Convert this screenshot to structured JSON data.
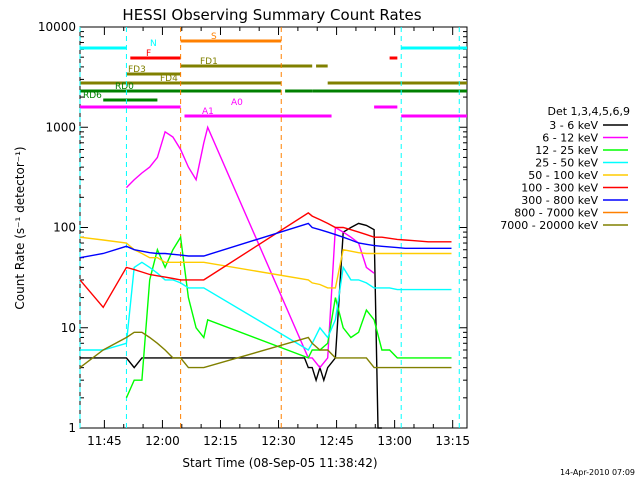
{
  "chart_data": {
    "type": "line",
    "title": "HESSI Observing Summary Count Rates",
    "xlabel": "Start Time (08-Sep-05 11:38:42)",
    "ylabel": "Count Rate (s⁻¹ detector⁻¹)",
    "y_scale": "log",
    "ylim": [
      1,
      10000
    ],
    "xlim_minutes": [
      0,
      100
    ],
    "x_ticks": [
      "11:45",
      "12:00",
      "12:15",
      "12:30",
      "12:45",
      "13:00",
      "13:15"
    ],
    "y_ticks": [
      "1",
      "10",
      "100",
      "1000",
      "10000"
    ],
    "footer_date": "14-Apr-2010 07:09",
    "legend_title": "Det 1,3,4,5,6,9",
    "series": [
      {
        "name": "3 - 6 keV",
        "color": "#000000",
        "x": [
          0,
          6,
          12,
          14,
          16,
          18,
          20,
          22,
          24,
          26,
          28,
          30,
          32,
          34,
          36,
          38,
          40,
          42,
          58,
          59,
          60,
          61,
          62,
          63,
          64,
          66,
          68,
          70,
          72,
          74,
          76,
          77,
          78
        ],
        "y": [
          5,
          5,
          5,
          4,
          5,
          5,
          5,
          5,
          5,
          5,
          5,
          5,
          5,
          5,
          5,
          5,
          5,
          5,
          5,
          4,
          4,
          3,
          4,
          3,
          4,
          5,
          90,
          100,
          110,
          105,
          95,
          1,
          1
        ],
        "segments": [
          [
            0,
            12
          ],
          [
            12,
            20
          ],
          [
            20,
            31
          ],
          [
            31,
            33
          ]
        ]
      },
      {
        "name": "6 - 12 keV",
        "color": "#ff00ff",
        "x": [
          12,
          14,
          16,
          18,
          20,
          22,
          24,
          26,
          28,
          30,
          32,
          33,
          59,
          60,
          62,
          64,
          66,
          68,
          70,
          72,
          74,
          76
        ],
        "y": [
          250,
          300,
          350,
          400,
          500,
          900,
          800,
          600,
          400,
          300,
          700,
          1000,
          5,
          5,
          4,
          5,
          100,
          90,
          80,
          70,
          40,
          35
        ]
      },
      {
        "name": "12 - 25 keV",
        "color": "#00ff00",
        "x": [
          12,
          14,
          16,
          18,
          20,
          22,
          24,
          26,
          28,
          30,
          32,
          33,
          59,
          60,
          62,
          64,
          66,
          68,
          70,
          72,
          74,
          76,
          78,
          80,
          82,
          84,
          86,
          88,
          90,
          92,
          94,
          96
        ],
        "y": [
          2,
          3,
          3,
          30,
          60,
          40,
          60,
          80,
          20,
          10,
          8,
          12,
          5,
          6,
          6,
          7,
          20,
          10,
          8,
          9,
          15,
          12,
          6,
          6,
          5,
          5,
          5,
          5,
          5,
          5,
          5,
          5
        ]
      },
      {
        "name": "25 - 50 keV",
        "color": "#00ffff",
        "x": [
          0,
          6,
          12,
          14,
          16,
          18,
          20,
          22,
          24,
          26,
          28,
          30,
          32,
          59,
          60,
          62,
          64,
          66,
          68,
          70,
          72,
          74,
          76,
          78,
          80,
          82,
          84,
          86,
          88,
          90,
          92,
          94,
          96
        ],
        "y": [
          6,
          6,
          7,
          40,
          45,
          40,
          35,
          30,
          30,
          28,
          25,
          25,
          25,
          6,
          7,
          10,
          8,
          12,
          40,
          30,
          30,
          28,
          25,
          25,
          25,
          24,
          24,
          24,
          24,
          24,
          24,
          24,
          24
        ]
      },
      {
        "name": "50 - 100 keV",
        "color": "#ffcc00",
        "x": [
          0,
          6,
          12,
          14,
          16,
          18,
          20,
          22,
          24,
          26,
          28,
          30,
          32,
          59,
          60,
          62,
          64,
          66,
          68,
          70,
          72,
          74,
          76,
          78,
          80,
          82,
          84,
          86,
          88,
          90,
          92,
          94,
          96
        ],
        "y": [
          80,
          75,
          70,
          60,
          55,
          50,
          50,
          45,
          45,
          45,
          45,
          45,
          45,
          30,
          28,
          27,
          25,
          25,
          60,
          58,
          56,
          55,
          55,
          55,
          55,
          55,
          55,
          55,
          55,
          55,
          55,
          55,
          55
        ]
      },
      {
        "name": "100 - 300 keV",
        "color": "#ff0000",
        "x": [
          0,
          6,
          12,
          14,
          16,
          18,
          20,
          22,
          24,
          26,
          28,
          30,
          32,
          59,
          60,
          62,
          64,
          66,
          68,
          70,
          72,
          74,
          76,
          78,
          80,
          82,
          84,
          86,
          88,
          90,
          92,
          94,
          96
        ],
        "y": [
          30,
          16,
          40,
          38,
          36,
          34,
          33,
          32,
          31,
          30,
          30,
          30,
          30,
          140,
          130,
          120,
          110,
          100,
          100,
          95,
          90,
          85,
          80,
          80,
          78,
          76,
          75,
          74,
          73,
          72,
          72,
          72,
          72
        ]
      },
      {
        "name": "300 - 800 keV",
        "color": "#0000ff",
        "x": [
          0,
          6,
          12,
          14,
          16,
          18,
          20,
          22,
          24,
          26,
          28,
          30,
          32,
          59,
          60,
          62,
          64,
          66,
          68,
          70,
          72,
          74,
          76,
          78,
          80,
          82,
          84,
          86,
          88,
          90,
          92,
          94,
          96
        ],
        "y": [
          50,
          55,
          65,
          60,
          58,
          56,
          55,
          55,
          54,
          53,
          52,
          52,
          52,
          110,
          100,
          95,
          90,
          85,
          80,
          75,
          70,
          68,
          66,
          65,
          64,
          63,
          62,
          62,
          62,
          62,
          62,
          62,
          62
        ]
      },
      {
        "name": "800 - 7000 keV",
        "color": "#ff8000",
        "x": [],
        "y": []
      },
      {
        "name": "7000 - 20000 keV",
        "color": "#808000",
        "x": [
          0,
          6,
          12,
          14,
          16,
          18,
          20,
          22,
          24,
          26,
          28,
          30,
          32,
          59,
          60,
          62,
          64,
          66,
          68,
          70,
          72,
          74,
          76,
          78,
          80,
          82,
          84,
          86,
          88,
          90,
          92,
          94,
          96
        ],
        "y": [
          4,
          6,
          8,
          9,
          9,
          8,
          7,
          6,
          5,
          5,
          4,
          4,
          4,
          8,
          7,
          6,
          6,
          5,
          5,
          5,
          5,
          5,
          4,
          4,
          4,
          4,
          4,
          4,
          4,
          4,
          4,
          4,
          4
        ]
      }
    ],
    "state_bars": [
      {
        "label": "N",
        "color": "#00ffff",
        "segments": [
          [
            0,
            12
          ],
          [
            83,
            100
          ]
        ]
      },
      {
        "label": "F",
        "color": "#ff0000",
        "segments": [
          [
            13,
            26
          ],
          [
            80,
            82
          ]
        ]
      },
      {
        "label": "S",
        "color": "#ff8000",
        "segments": [
          [
            26,
            52
          ]
        ]
      },
      {
        "label": "FD1",
        "color": "#808000",
        "segments": [
          [
            26,
            60
          ],
          [
            61,
            64
          ]
        ]
      },
      {
        "label": "FD3",
        "color": "#808000",
        "segments": [
          [
            12,
            26
          ]
        ]
      },
      {
        "label": "FD4",
        "color": "#808000",
        "segments": [
          [
            0,
            52
          ],
          [
            64,
            100
          ]
        ]
      },
      {
        "label": "RD0",
        "color": "#008000",
        "segments": [
          [
            0,
            12
          ],
          [
            12,
            52
          ],
          [
            53,
            60
          ],
          [
            60,
            100
          ]
        ]
      },
      {
        "label": "RD6",
        "color": "#008000",
        "segments": [
          [
            6,
            20
          ]
        ]
      },
      {
        "label": "A0",
        "color": "#ff00ff",
        "segments": [
          [
            0,
            26
          ],
          [
            76,
            82
          ]
        ]
      },
      {
        "label": "A1",
        "color": "#ff00ff",
        "segments": [
          [
            27,
            65
          ],
          [
            83,
            100
          ]
        ]
      }
    ],
    "vlines_minutes": [
      {
        "x": 0,
        "color": "#00ffff"
      },
      {
        "x": 12,
        "color": "#00ffff"
      },
      {
        "x": 26,
        "color": "#ff8000"
      },
      {
        "x": 52,
        "color": "#ff8000"
      },
      {
        "x": 83,
        "color": "#00ffff"
      },
      {
        "x": 98,
        "color": "#00ffff"
      }
    ]
  }
}
